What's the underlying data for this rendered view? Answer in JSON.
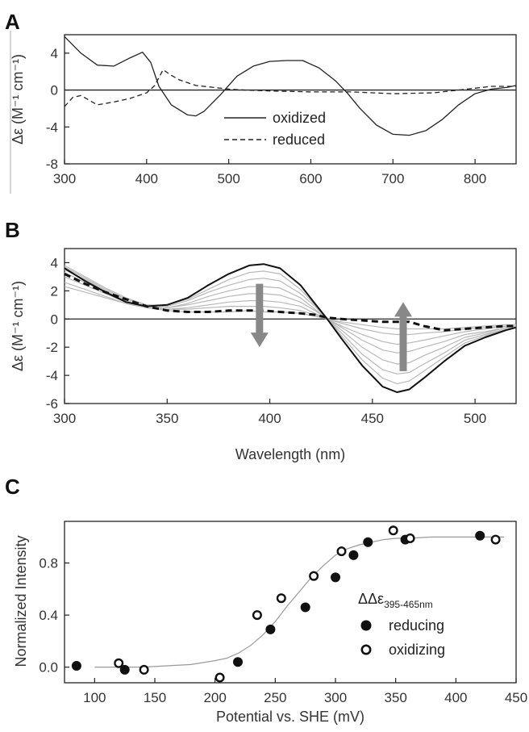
{
  "chart_data": [
    {
      "panel": "A",
      "type": "line",
      "xlabel": "",
      "ylabel": "Δε (M⁻¹ cm⁻¹)",
      "xlim": [
        300,
        850
      ],
      "ylim": [
        -8,
        6
      ],
      "xticks": [
        300,
        400,
        500,
        600,
        700,
        800
      ],
      "yticks": [
        -8,
        -4,
        0,
        4
      ],
      "zero_line": true,
      "legend": {
        "placement": "bottom-center"
      },
      "series": [
        {
          "name": "oxidized",
          "style": "solid",
          "x": [
            300,
            320,
            340,
            360,
            380,
            395,
            405,
            415,
            430,
            450,
            460,
            470,
            490,
            510,
            530,
            550,
            570,
            590,
            610,
            630,
            645,
            660,
            680,
            700,
            720,
            740,
            760,
            780,
            800,
            820,
            840,
            850
          ],
          "y": [
            5.8,
            4.0,
            2.7,
            2.6,
            3.5,
            4.1,
            3.0,
            0.4,
            -1.6,
            -2.7,
            -2.8,
            -2.3,
            -0.5,
            1.5,
            2.6,
            3.1,
            3.2,
            3.2,
            2.4,
            1.0,
            -0.4,
            -2.0,
            -3.8,
            -4.8,
            -4.9,
            -4.4,
            -3.2,
            -1.6,
            -0.4,
            0.1,
            0.3,
            0.5
          ]
        },
        {
          "name": "reduced",
          "style": "dashed",
          "x": [
            300,
            310,
            320,
            340,
            360,
            380,
            400,
            410,
            420,
            430,
            440,
            460,
            480,
            500,
            520,
            550,
            600,
            650,
            700,
            750,
            800,
            820,
            850
          ],
          "y": [
            -1.8,
            -0.8,
            -0.6,
            -1.6,
            -1.3,
            -0.9,
            -0.3,
            0.5,
            2.2,
            1.6,
            1.1,
            0.5,
            0.3,
            0.1,
            0.0,
            -0.1,
            -0.2,
            -0.2,
            -0.4,
            -0.3,
            0.2,
            0.4,
            0.4
          ]
        }
      ]
    },
    {
      "panel": "B",
      "type": "line",
      "xlabel": "Wavelength (nm)",
      "ylabel": "Δε (M⁻¹ cm⁻¹)",
      "xlim": [
        300,
        520
      ],
      "ylim": [
        -6,
        5
      ],
      "xticks": [
        300,
        350,
        400,
        450,
        500
      ],
      "yticks": [
        -6,
        -4,
        -2,
        0,
        2,
        4
      ],
      "zero_line": true,
      "x": [
        300,
        310,
        320,
        330,
        340,
        350,
        360,
        370,
        380,
        390,
        397,
        405,
        415,
        422,
        428,
        435,
        445,
        455,
        462,
        468,
        475,
        485,
        495,
        505,
        515,
        520
      ],
      "series": [
        {
          "style": "black-solid",
          "y": [
            3.6,
            2.7,
            1.9,
            1.2,
            0.9,
            1.0,
            1.5,
            2.4,
            3.2,
            3.8,
            3.9,
            3.6,
            2.4,
            1.1,
            0.0,
            -1.4,
            -3.3,
            -4.8,
            -5.2,
            -5.0,
            -4.2,
            -3.0,
            -1.9,
            -1.3,
            -0.8,
            -0.6
          ]
        },
        {
          "style": "black-dashed",
          "y": [
            3.2,
            2.5,
            1.9,
            1.4,
            0.9,
            0.6,
            0.5,
            0.5,
            0.6,
            0.6,
            0.6,
            0.5,
            0.4,
            0.3,
            0.1,
            0.0,
            -0.1,
            -0.2,
            -0.2,
            -0.2,
            -0.5,
            -0.8,
            -0.7,
            -0.6,
            -0.5,
            -0.5
          ]
        },
        {
          "style": "gray",
          "y": [
            3.8,
            3.0,
            2.2,
            1.5,
            1.0,
            1.0,
            1.4,
            2.1,
            2.8,
            3.3,
            3.4,
            3.2,
            2.1,
            1.0,
            0.0,
            -1.2,
            -2.9,
            -4.2,
            -4.6,
            -4.4,
            -3.7,
            -2.7,
            -1.7,
            -1.2,
            -0.7,
            -0.6
          ]
        },
        {
          "style": "gray",
          "y": [
            3.7,
            2.9,
            2.1,
            1.4,
            1.0,
            0.9,
            1.3,
            1.9,
            2.4,
            2.8,
            2.9,
            2.7,
            1.8,
            0.9,
            0.0,
            -1.0,
            -2.5,
            -3.6,
            -3.9,
            -3.8,
            -3.2,
            -2.4,
            -1.5,
            -1.1,
            -0.7,
            -0.6
          ]
        },
        {
          "style": "gray",
          "y": [
            3.5,
            2.8,
            2.0,
            1.3,
            0.9,
            0.8,
            1.1,
            1.6,
            2.0,
            2.3,
            2.3,
            2.2,
            1.5,
            0.7,
            0.0,
            -0.8,
            -2.0,
            -2.9,
            -3.2,
            -3.1,
            -2.6,
            -2.0,
            -1.3,
            -1.0,
            -0.6,
            -0.5
          ]
        },
        {
          "style": "gray",
          "y": [
            3.3,
            2.6,
            1.9,
            1.3,
            0.9,
            0.8,
            1.0,
            1.3,
            1.6,
            1.8,
            1.8,
            1.7,
            1.2,
            0.6,
            0.0,
            -0.6,
            -1.5,
            -2.2,
            -2.4,
            -2.3,
            -2.0,
            -1.6,
            -1.1,
            -0.9,
            -0.6,
            -0.5
          ]
        },
        {
          "style": "gray",
          "y": [
            3.0,
            2.4,
            1.8,
            1.2,
            0.8,
            0.7,
            0.8,
            1.0,
            1.2,
            1.3,
            1.3,
            1.2,
            0.9,
            0.4,
            0.0,
            -0.5,
            -1.1,
            -1.6,
            -1.8,
            -1.7,
            -1.5,
            -1.2,
            -0.9,
            -0.7,
            -0.5,
            -0.5
          ]
        },
        {
          "style": "gray",
          "y": [
            2.6,
            2.1,
            1.6,
            1.1,
            0.8,
            0.7,
            0.7,
            0.8,
            0.9,
            0.9,
            0.9,
            0.8,
            0.6,
            0.3,
            0.0,
            -0.3,
            -0.7,
            -1.0,
            -1.1,
            -1.1,
            -1.0,
            -0.9,
            -0.7,
            -0.6,
            -0.5,
            -0.5
          ]
        },
        {
          "style": "gray",
          "y": [
            2.3,
            1.9,
            1.5,
            1.1,
            0.8,
            0.6,
            0.5,
            0.5,
            0.5,
            0.6,
            0.5,
            0.5,
            0.4,
            0.2,
            0.0,
            -0.2,
            -0.4,
            -0.6,
            -0.7,
            -0.7,
            -0.7,
            -0.7,
            -0.6,
            -0.5,
            -0.4,
            -0.4
          ]
        }
      ],
      "arrows": [
        {
          "x": 395,
          "from": 2.5,
          "to": -2.0,
          "direction": "down"
        },
        {
          "x": 465,
          "from": -3.7,
          "to": 1.2,
          "direction": "up"
        }
      ]
    },
    {
      "panel": "C",
      "type": "scatter",
      "xlabel": "Potential vs. SHE (mV)",
      "ylabel": "Normalized Intensity",
      "xlim": [
        75,
        450
      ],
      "ylim": [
        -0.12,
        1.12
      ],
      "xticks": [
        100,
        150,
        200,
        250,
        300,
        350,
        400,
        450
      ],
      "yticks": [
        0.0,
        0.4,
        0.8
      ],
      "legend": {
        "placement": "bottom-right",
        "title": "ΔΔε",
        "title_sub": "395-465nm"
      },
      "series": [
        {
          "name": "reducing",
          "marker": "filled-circle",
          "x": [
            85,
            125,
            219,
            246,
            275,
            300,
            315,
            327,
            358,
            420
          ],
          "y": [
            0.01,
            -0.02,
            0.04,
            0.29,
            0.46,
            0.69,
            0.86,
            0.96,
            0.98,
            1.01
          ]
        },
        {
          "name": "oxidizing",
          "marker": "open-circle",
          "x": [
            120,
            141,
            204,
            235,
            255,
            282,
            305,
            348,
            362,
            433
          ],
          "y": [
            0.03,
            -0.02,
            -0.08,
            0.4,
            0.53,
            0.7,
            0.89,
            1.05,
            0.99,
            0.98
          ]
        }
      ],
      "fit": {
        "type": "sigmoid",
        "x": [
          100,
          120,
          140,
          160,
          180,
          200,
          210,
          220,
          230,
          240,
          250,
          260,
          270,
          280,
          290,
          300,
          310,
          320,
          330,
          340,
          350,
          360,
          380,
          400,
          420,
          440
        ],
        "y": [
          0.0,
          0.0,
          0.0,
          0.01,
          0.02,
          0.05,
          0.07,
          0.11,
          0.17,
          0.25,
          0.35,
          0.47,
          0.58,
          0.69,
          0.78,
          0.86,
          0.91,
          0.94,
          0.96,
          0.98,
          0.99,
          0.99,
          1.0,
          1.0,
          1.0,
          1.0
        ]
      }
    }
  ]
}
